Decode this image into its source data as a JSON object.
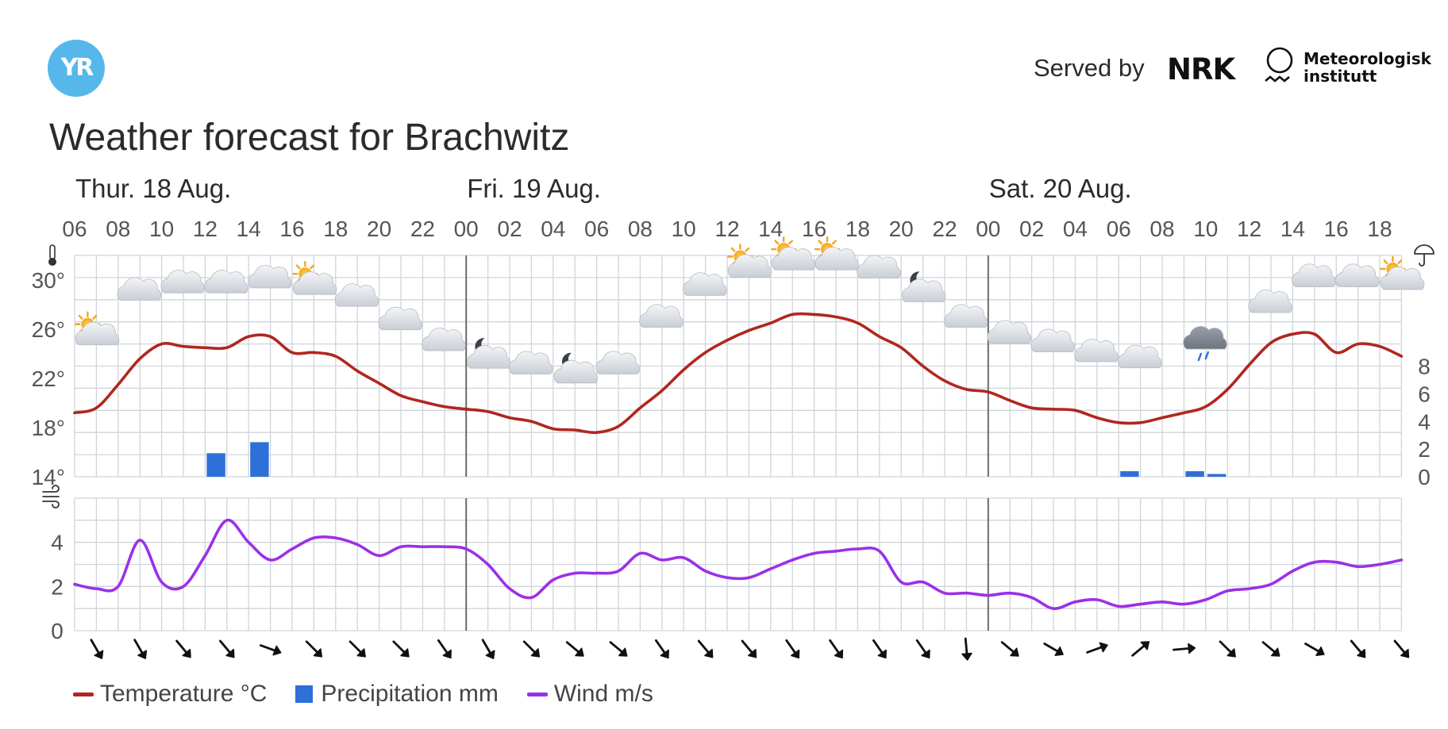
{
  "header": {
    "logo_text": "YR",
    "served_by": "Served by",
    "nrk_logo_text": "NRK",
    "met_line1": "Meteorologisk",
    "met_line2": "institutt",
    "title": "Weather forecast for Brachwitz"
  },
  "colors": {
    "temperature": "#b0271f",
    "precipitation": "#2e6fd8",
    "wind": "#9b30e8",
    "grid": "#d0d4da",
    "day_divider": "#6a6a6a",
    "logo": "#56b8ea"
  },
  "legend": [
    {
      "label": "Temperature °C",
      "color": "#b0271f",
      "shape": "line"
    },
    {
      "label": "Precipitation mm",
      "color": "#2e6fd8",
      "shape": "box"
    },
    {
      "label": "Wind m/s",
      "color": "#9b30e8",
      "shape": "line"
    }
  ],
  "chart_data": {
    "type": "line",
    "days": [
      {
        "label": "Thur. 18 Aug.",
        "start_hour": 6
      },
      {
        "label": "Fri. 19 Aug.",
        "start_hour": 24
      },
      {
        "label": "Sat. 20 Aug.",
        "start_hour": 48
      }
    ],
    "x_range_hours": [
      6,
      67
    ],
    "x_tick_labels": [
      "06",
      "08",
      "10",
      "12",
      "14",
      "16",
      "18",
      "20",
      "22",
      "00",
      "02",
      "04",
      "06",
      "08",
      "10",
      "12",
      "14",
      "16",
      "18",
      "20",
      "22",
      "00",
      "02",
      "04",
      "06",
      "08",
      "10",
      "12",
      "14",
      "16",
      "18"
    ],
    "x_tick_hours": [
      6,
      8,
      10,
      12,
      14,
      16,
      18,
      20,
      22,
      24,
      26,
      28,
      30,
      32,
      34,
      36,
      38,
      40,
      42,
      44,
      46,
      48,
      50,
      52,
      54,
      56,
      58,
      60,
      62,
      64,
      66
    ],
    "temperature": {
      "name": "Temperature °C",
      "ylim": [
        14,
        32
      ],
      "yticks": [
        "14°",
        "18°",
        "22°",
        "26°",
        "30°"
      ],
      "ytick_values": [
        14,
        18,
        22,
        26,
        30
      ],
      "icon": "thermometer-icon",
      "hours": [
        6,
        7,
        8,
        9,
        10,
        11,
        12,
        13,
        14,
        15,
        16,
        17,
        18,
        19,
        20,
        21,
        22,
        23,
        24,
        25,
        26,
        27,
        28,
        29,
        30,
        31,
        32,
        33,
        34,
        35,
        36,
        37,
        38,
        39,
        40,
        41,
        42,
        43,
        44,
        45,
        46,
        47,
        48,
        49,
        50,
        51,
        52,
        53,
        54,
        55,
        56,
        57,
        58,
        59,
        60,
        61,
        62,
        63,
        64,
        65,
        66,
        67
      ],
      "values": [
        19.2,
        19.6,
        21.5,
        23.6,
        24.8,
        24.6,
        24.5,
        24.5,
        25.4,
        25.4,
        24.1,
        24.1,
        23.8,
        22.6,
        21.6,
        20.6,
        20.1,
        19.7,
        19.5,
        19.3,
        18.8,
        18.5,
        17.9,
        17.8,
        17.6,
        18.1,
        19.6,
        21.0,
        22.7,
        24.1,
        25.1,
        25.9,
        26.5,
        27.2,
        27.2,
        27.0,
        26.5,
        25.4,
        24.5,
        23.0,
        21.8,
        21.1,
        20.9,
        20.2,
        19.6,
        19.5,
        19.4,
        18.8,
        18.4,
        18.4,
        18.8,
        19.2,
        19.7,
        21.1,
        23.1,
        24.9,
        25.6,
        25.6,
        24.1,
        24.8,
        24.6,
        23.8
      ]
    },
    "precipitation": {
      "name": "Precipitation mm",
      "ylim": [
        0,
        16
      ],
      "yticks": [
        "0",
        "2",
        "4",
        "6",
        "8"
      ],
      "ytick_values": [
        0,
        2,
        4,
        6,
        8
      ],
      "icon": "umbrella-icon",
      "bars": [
        {
          "hour": 12,
          "value": 1.7
        },
        {
          "hour": 14,
          "value": 2.5
        },
        {
          "hour": 54,
          "value": 0.4
        },
        {
          "hour": 57,
          "value": 0.4
        },
        {
          "hour": 58,
          "value": 0.2
        }
      ]
    },
    "wind": {
      "name": "Wind m/s",
      "ylim": [
        0,
        6
      ],
      "yticks": [
        "0",
        "2",
        "4"
      ],
      "ytick_values": [
        0,
        2,
        4
      ],
      "icon": "wind-icon",
      "hours": [
        6,
        7,
        8,
        9,
        10,
        11,
        12,
        13,
        14,
        15,
        16,
        17,
        18,
        19,
        20,
        21,
        22,
        23,
        24,
        25,
        26,
        27,
        28,
        29,
        30,
        31,
        32,
        33,
        34,
        35,
        36,
        37,
        38,
        39,
        40,
        41,
        42,
        43,
        44,
        45,
        46,
        47,
        48,
        49,
        50,
        51,
        52,
        53,
        54,
        55,
        56,
        57,
        58,
        59,
        60,
        61,
        62,
        63,
        64,
        65,
        66,
        67
      ],
      "values": [
        2.1,
        1.9,
        2.0,
        4.1,
        2.2,
        2.0,
        3.4,
        5.0,
        4.0,
        3.2,
        3.7,
        4.2,
        4.2,
        3.9,
        3.4,
        3.8,
        3.8,
        3.8,
        3.7,
        3.0,
        1.9,
        1.5,
        2.3,
        2.6,
        2.6,
        2.7,
        3.5,
        3.2,
        3.3,
        2.7,
        2.4,
        2.4,
        2.8,
        3.2,
        3.5,
        3.6,
        3.7,
        3.6,
        2.2,
        2.2,
        1.7,
        1.7,
        1.6,
        1.7,
        1.5,
        1.0,
        1.3,
        1.4,
        1.1,
        1.2,
        1.3,
        1.2,
        1.4,
        1.8,
        1.9,
        2.1,
        2.7,
        3.1,
        3.1,
        2.9,
        3.0,
        3.2
      ]
    },
    "wind_directions": {
      "hours": [
        7,
        9,
        11,
        13,
        15,
        17,
        19,
        21,
        23,
        25,
        27,
        29,
        31,
        33,
        35,
        37,
        39,
        41,
        43,
        45,
        47,
        49,
        51,
        53,
        55,
        57,
        59,
        61,
        63,
        65,
        67
      ],
      "rotation_deg": [
        -30,
        -30,
        -40,
        -40,
        -70,
        -45,
        -45,
        -45,
        -35,
        -30,
        -45,
        -50,
        -50,
        -35,
        -40,
        -40,
        -35,
        -35,
        -35,
        -35,
        -5,
        -50,
        -60,
        -110,
        -130,
        -95,
        -45,
        -50,
        -60,
        -40,
        -40
      ]
    },
    "weather_symbols": [
      {
        "hour": 7,
        "value": 25.5,
        "kind": "partly-cloudy-day"
      },
      {
        "hour": 9,
        "value": 29.0,
        "kind": "cloudy"
      },
      {
        "hour": 11,
        "value": 29.6,
        "kind": "cloudy"
      },
      {
        "hour": 13,
        "value": 29.6,
        "kind": "cloudy"
      },
      {
        "hour": 15,
        "value": 30.0,
        "kind": "cloudy"
      },
      {
        "hour": 17,
        "value": 29.6,
        "kind": "partly-cloudy-day"
      },
      {
        "hour": 19,
        "value": 28.5,
        "kind": "cloudy"
      },
      {
        "hour": 21,
        "value": 26.6,
        "kind": "cloudy"
      },
      {
        "hour": 23,
        "value": 24.9,
        "kind": "cloudy"
      },
      {
        "hour": 25,
        "value": 23.6,
        "kind": "partly-cloudy-night"
      },
      {
        "hour": 27,
        "value": 23.0,
        "kind": "cloudy"
      },
      {
        "hour": 29,
        "value": 22.4,
        "kind": "partly-cloudy-night"
      },
      {
        "hour": 31,
        "value": 23.0,
        "kind": "cloudy"
      },
      {
        "hour": 33,
        "value": 26.8,
        "kind": "cloudy"
      },
      {
        "hour": 35,
        "value": 29.4,
        "kind": "cloudy"
      },
      {
        "hour": 37,
        "value": 31.0,
        "kind": "partly-cloudy-day"
      },
      {
        "hour": 39,
        "value": 31.6,
        "kind": "partly-cloudy-day"
      },
      {
        "hour": 41,
        "value": 31.6,
        "kind": "partly-cloudy-day"
      },
      {
        "hour": 43,
        "value": 30.8,
        "kind": "cloudy"
      },
      {
        "hour": 45,
        "value": 29.0,
        "kind": "partly-cloudy-night"
      },
      {
        "hour": 47,
        "value": 26.8,
        "kind": "cloudy"
      },
      {
        "hour": 49,
        "value": 25.5,
        "kind": "cloudy"
      },
      {
        "hour": 51,
        "value": 24.8,
        "kind": "cloudy"
      },
      {
        "hour": 53,
        "value": 24.0,
        "kind": "cloudy"
      },
      {
        "hour": 55,
        "value": 23.5,
        "kind": "cloudy"
      },
      {
        "hour": 58,
        "value": 24.9,
        "kind": "light-rain"
      },
      {
        "hour": 61,
        "value": 28.0,
        "kind": "cloudy"
      },
      {
        "hour": 63,
        "value": 30.1,
        "kind": "cloudy"
      },
      {
        "hour": 65,
        "value": 30.1,
        "kind": "cloudy"
      },
      {
        "hour": 67,
        "value": 30.0,
        "kind": "partly-cloudy-day"
      }
    ]
  }
}
